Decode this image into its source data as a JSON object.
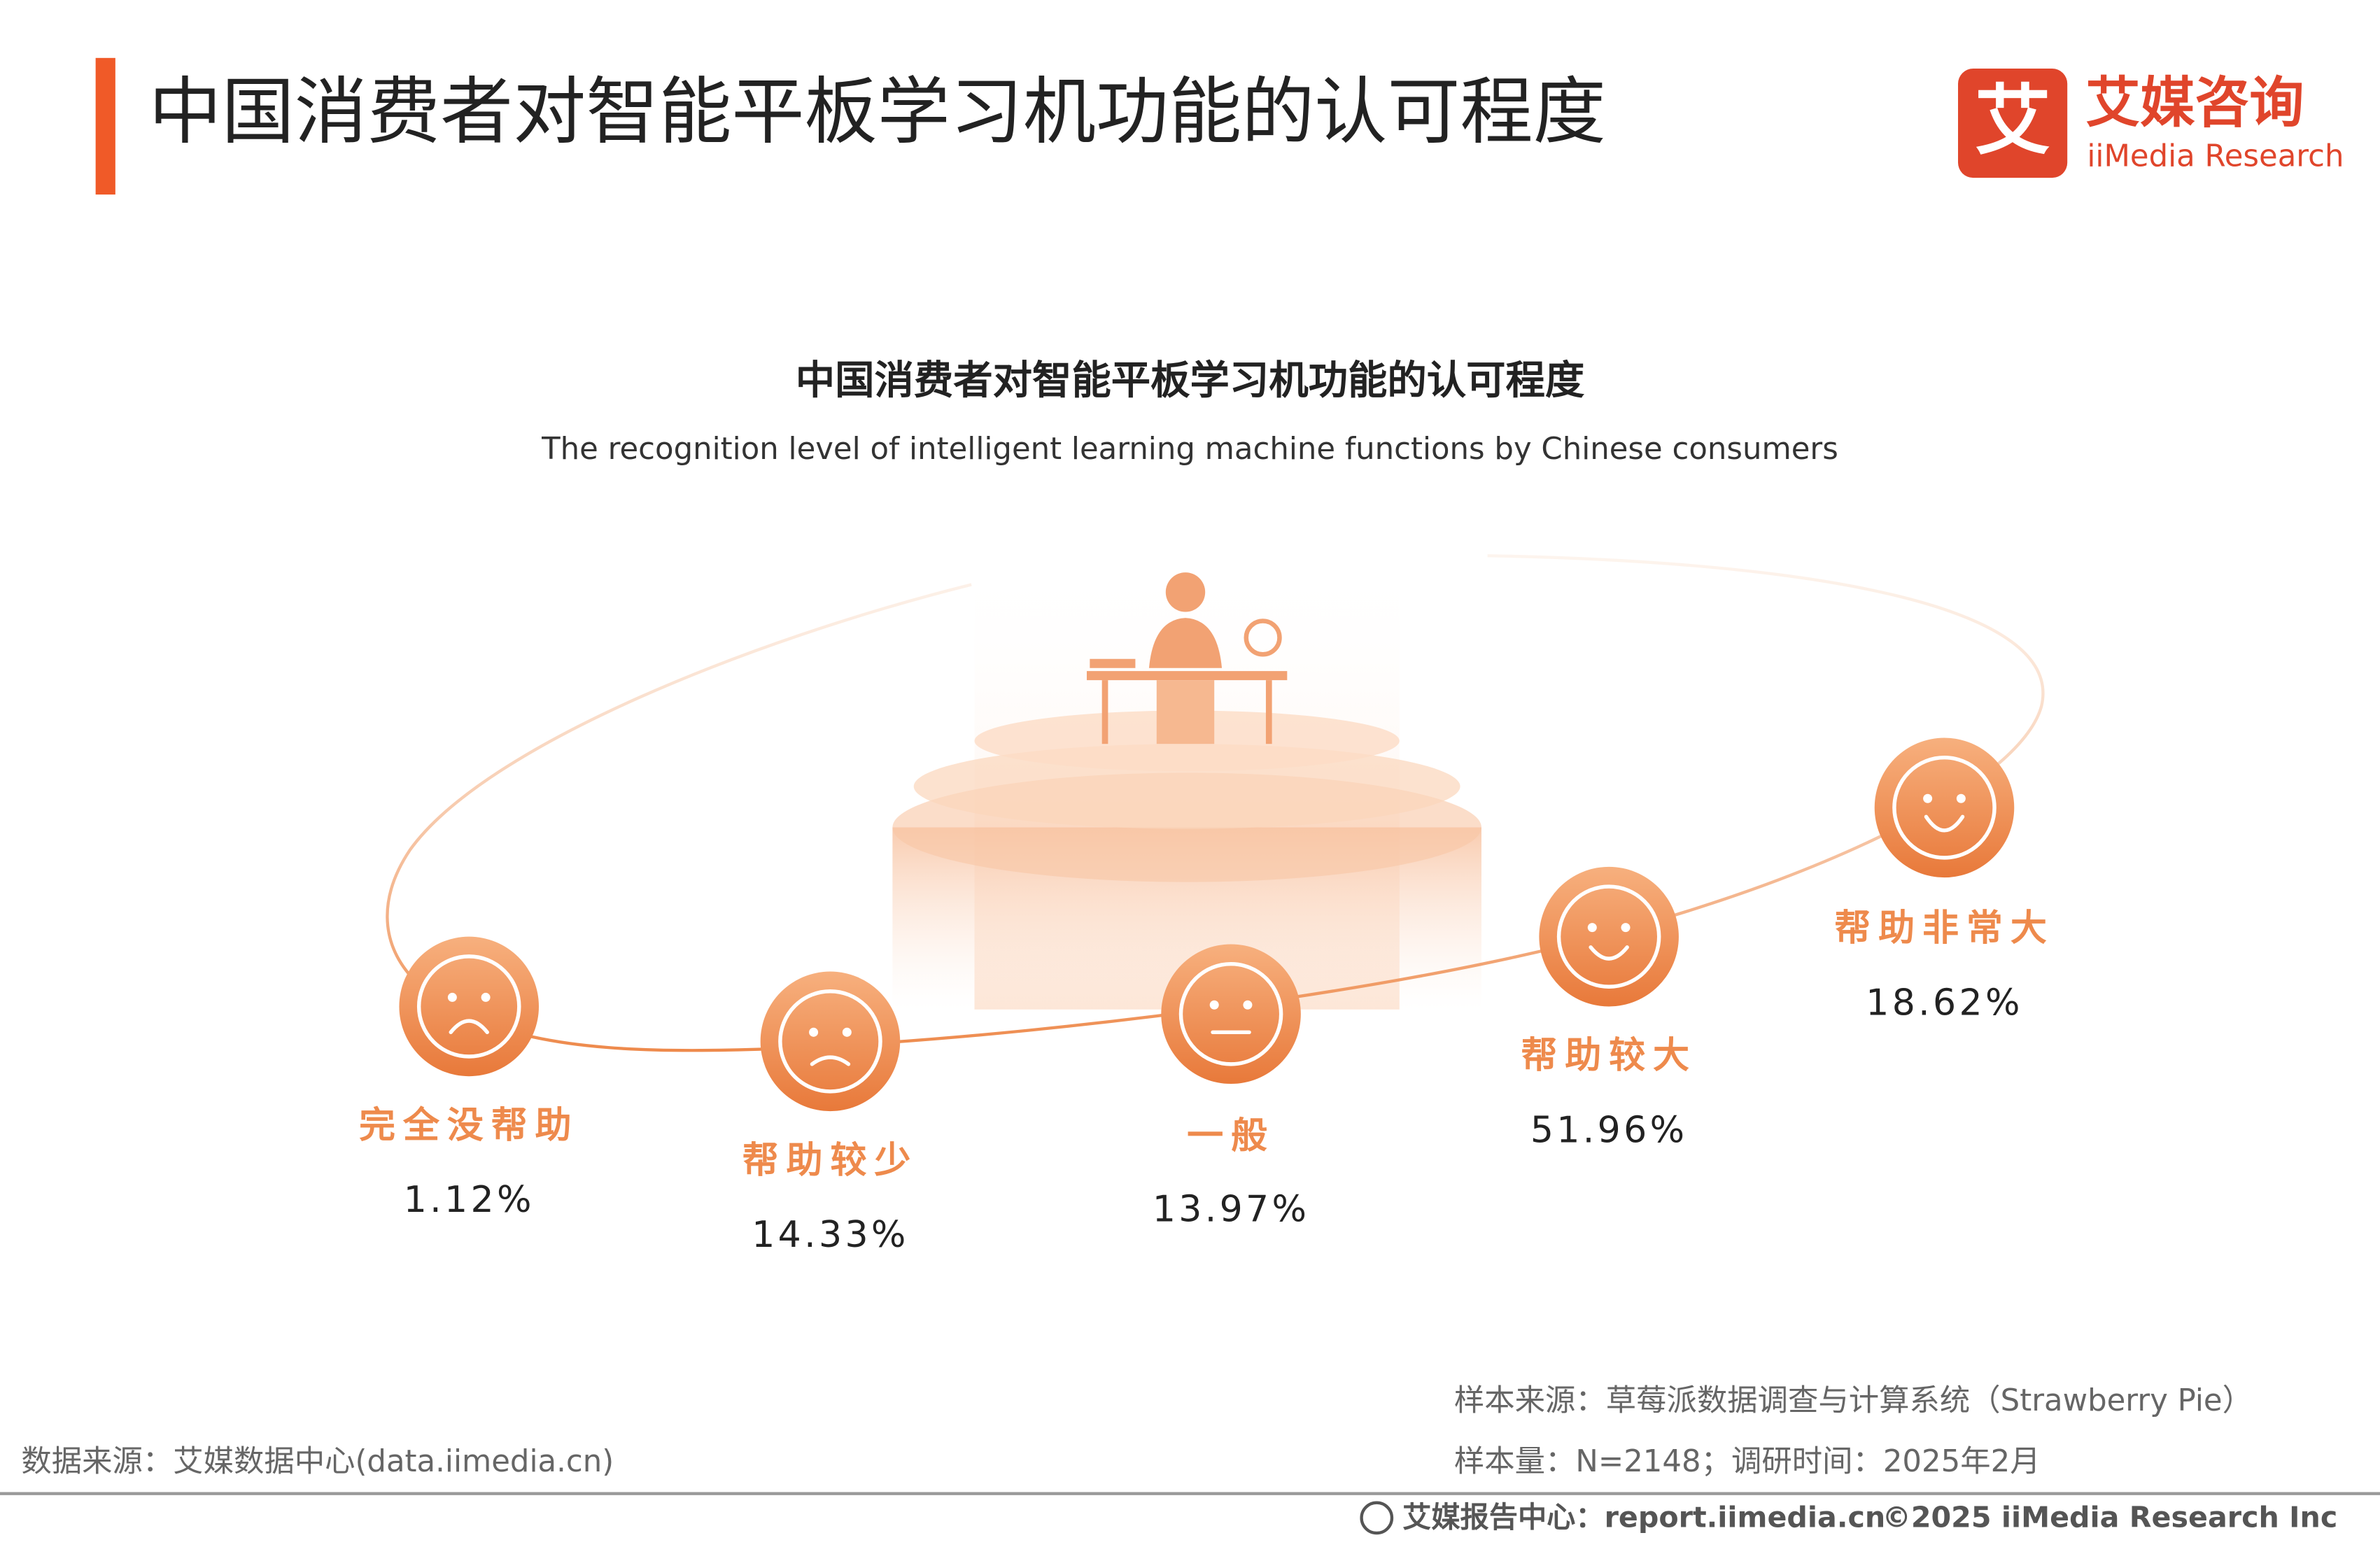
{
  "header": {
    "title": "中国消费者对智能平板学习机功能的认可程度",
    "logo_mark": "艾",
    "logo_cn": "艾媒咨询",
    "logo_en": "iiMedia Research"
  },
  "chart_data": {
    "type": "orbit",
    "title": "中国消费者对智能平板学习机功能的认可程度",
    "subtitle": "The recognition level of intelligent learning machine functions by Chinese consumers",
    "categories": [
      "完全没帮助",
      "帮助较少",
      "一般",
      "帮助较大",
      "帮助非常大"
    ],
    "values": [
      1.12,
      14.33,
      13.97,
      51.96,
      18.62
    ],
    "value_labels": [
      "1.12%",
      "14.33%",
      "13.97%",
      "51.96%",
      "18.62%"
    ],
    "color": "#ee8a4c"
  },
  "notes": {
    "sample_source": "样本来源：草莓派数据调查与计算系统（Strawberry Pie）",
    "sample_size": "样本量：N=2148；调研时间：2025年2月",
    "data_source": "数据来源：艾媒数据中心(data.iimedia.cn)"
  },
  "footer": {
    "report_center": "艾媒报告中心：report.iimedia.cn",
    "copyright": "©2025  iiMedia Research  Inc"
  }
}
